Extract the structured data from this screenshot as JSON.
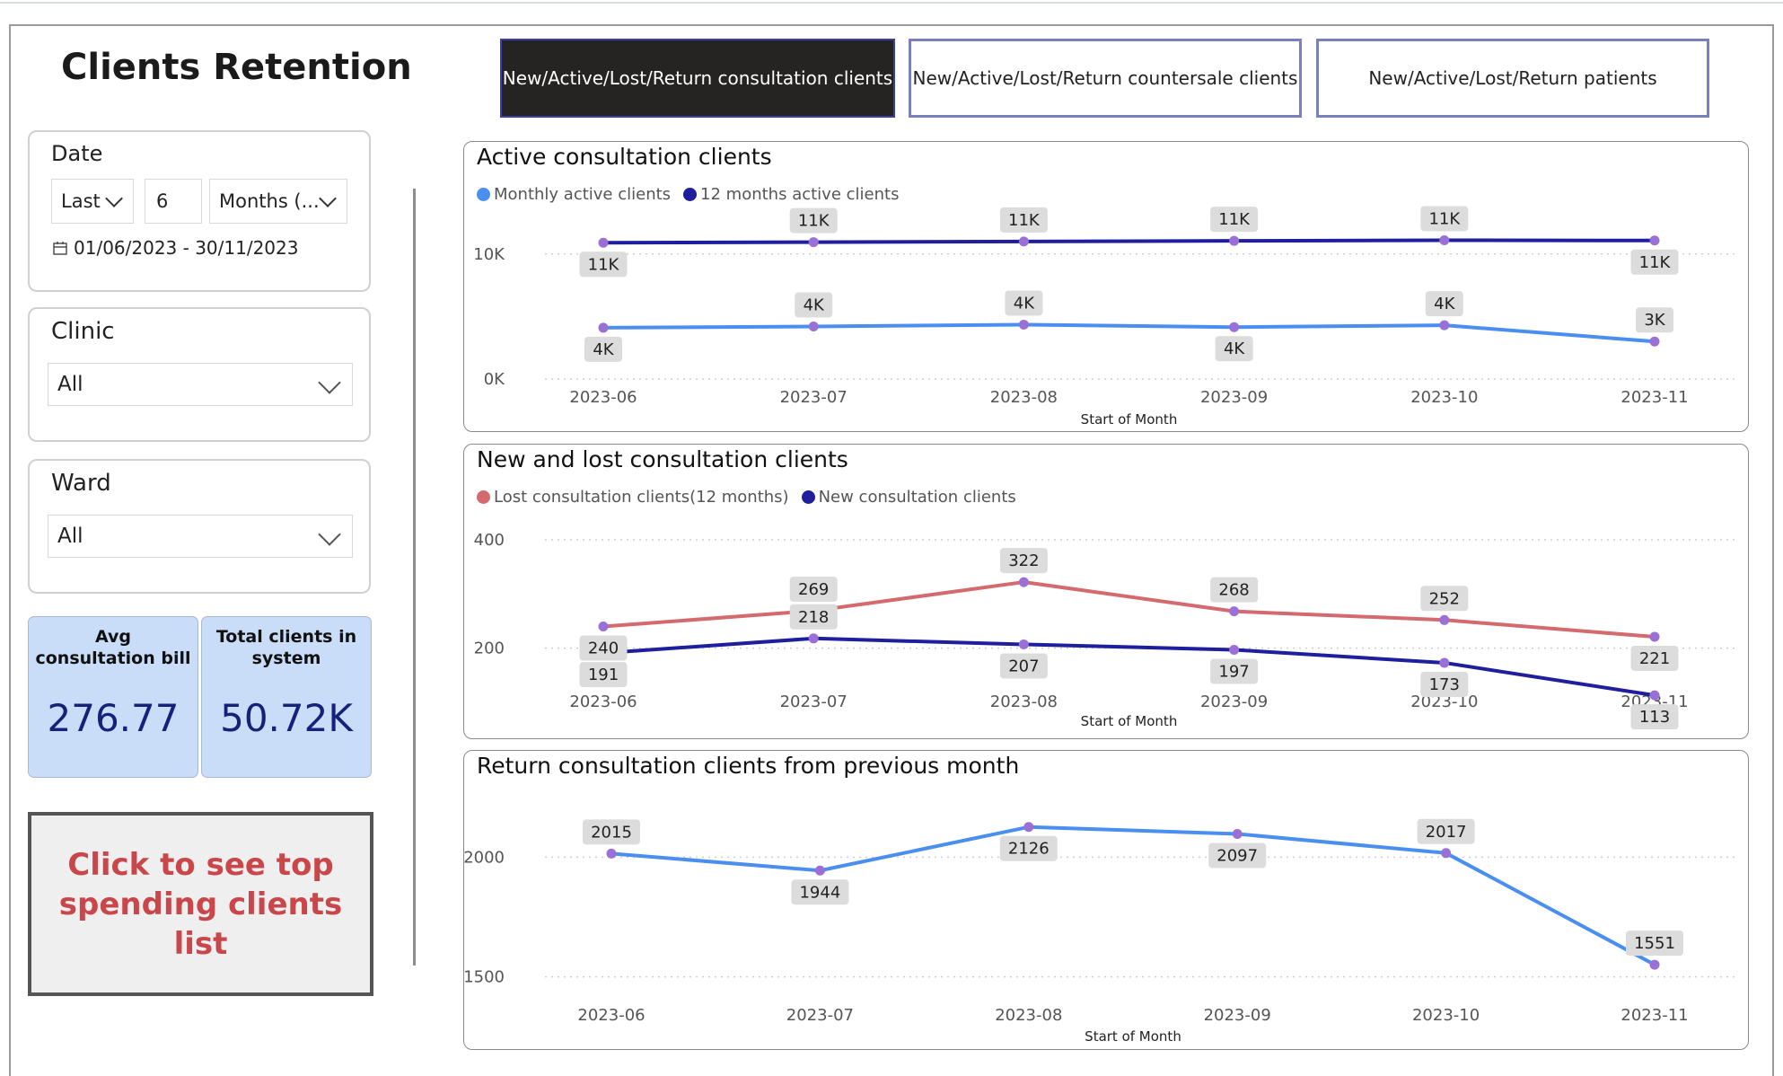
{
  "title": "Clients Retention",
  "tabs": [
    {
      "label": "New/Active/Lost/Return consultation clients",
      "active": true
    },
    {
      "label": "New/Active/Lost/Return countersale clients",
      "active": false
    },
    {
      "label": "New/Active/Lost/Return patients",
      "active": false
    }
  ],
  "filters": {
    "date": {
      "title": "Date",
      "relative": "Last",
      "count": "6",
      "unit": "Months (...",
      "range": "01/06/2023 - 30/11/2023"
    },
    "clinic": {
      "title": "Clinic",
      "value": "All"
    },
    "ward": {
      "title": "Ward",
      "value": "All"
    }
  },
  "kpis": [
    {
      "label": "Avg consultation bill",
      "value": "276.77"
    },
    {
      "label": "Total clients in system",
      "value": "50.72K"
    }
  ],
  "cta_label": "Click to see top spending clients list",
  "colors": {
    "monthly": "#4a8ff0",
    "twelve_month": "#1f1f9e",
    "lost": "#d46a6e",
    "new": "#1f1f9e",
    "return": "#4a8ff0",
    "marker": "#9a6fd6",
    "active_tab": "#252423"
  },
  "icons": {
    "calendar": "calendar-icon",
    "chevron": "chevron-down-icon"
  },
  "chart_data": [
    {
      "type": "line",
      "title": "Active consultation clients",
      "xlabel": "Start of Month",
      "ylabel": "",
      "x": [
        "2023-06",
        "2023-07",
        "2023-08",
        "2023-09",
        "2023-10",
        "2023-11"
      ],
      "yticks": [
        "0K",
        "10K"
      ],
      "ylim": [
        0,
        12500
      ],
      "legend": "top-left",
      "series": [
        {
          "name": "Monthly active clients",
          "values": [
            4100,
            4200,
            4350,
            4150,
            4300,
            3000
          ],
          "labels": [
            "4K",
            "4K",
            "4K",
            "4K",
            "4K",
            "3K"
          ]
        },
        {
          "name": "12 months active clients",
          "values": [
            10900,
            10950,
            11000,
            11050,
            11100,
            11080
          ],
          "labels": [
            "11K",
            "11K",
            "11K",
            "11K",
            "11K",
            "11K"
          ]
        }
      ]
    },
    {
      "type": "line",
      "title": "New and lost consultation clients",
      "xlabel": "Start of Month",
      "ylabel": "",
      "x": [
        "2023-06",
        "2023-07",
        "2023-08",
        "2023-09",
        "2023-10",
        "2023-11"
      ],
      "yticks": [
        "200",
        "400"
      ],
      "ylim": [
        95,
        410
      ],
      "legend": "top-left",
      "series": [
        {
          "name": "Lost consultation clients(12 months)",
          "values": [
            240,
            269,
            322,
            268,
            252,
            221
          ]
        },
        {
          "name": "New consultation clients",
          "values": [
            191,
            218,
            207,
            197,
            173,
            113
          ]
        }
      ]
    },
    {
      "type": "line",
      "title": "Return consultation clients from previous month",
      "xlabel": "Start of Month",
      "ylabel": "",
      "x": [
        "2023-06",
        "2023-07",
        "2023-08",
        "2023-09",
        "2023-10",
        "2023-11"
      ],
      "yticks": [
        "1500",
        "2000"
      ],
      "ylim": [
        1450,
        2200
      ],
      "legend": "none",
      "series": [
        {
          "name": "",
          "values": [
            2015,
            1944,
            2126,
            2097,
            2017,
            1551
          ]
        }
      ]
    }
  ]
}
